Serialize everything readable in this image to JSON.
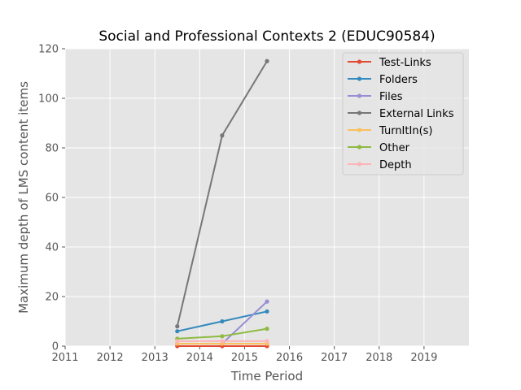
{
  "chart_data": {
    "type": "line",
    "title": "Social and Professional Contexts 2 (EDUC90584)",
    "xlabel": "Time Period",
    "ylabel": "Maximum depth of LMS content items",
    "xlim": [
      2011,
      2020
    ],
    "ylim": [
      0,
      120
    ],
    "xticks": [
      2011,
      2012,
      2013,
      2014,
      2015,
      2016,
      2017,
      2018,
      2019
    ],
    "yticks": [
      0,
      20,
      40,
      60,
      80,
      100,
      120
    ],
    "grid": true,
    "legend_position": "top-right",
    "x": [
      2013.5,
      2014.5,
      2015.5
    ],
    "series": [
      {
        "name": "Test-Links",
        "color": "#E24A33",
        "values": [
          0,
          0,
          0
        ]
      },
      {
        "name": "Folders",
        "color": "#348ABD",
        "values": [
          6,
          10,
          14
        ]
      },
      {
        "name": "Files",
        "color": "#988ED5",
        "values": [
          1,
          1,
          18
        ]
      },
      {
        "name": "External Links",
        "color": "#777777",
        "values": [
          8,
          85,
          115
        ]
      },
      {
        "name": "TurnItIn(s)",
        "color": "#FBC15E",
        "values": [
          1,
          1,
          1
        ]
      },
      {
        "name": "Other",
        "color": "#8EBA42",
        "values": [
          3,
          4,
          7
        ]
      },
      {
        "name": "Depth",
        "color": "#FFB5B8",
        "values": [
          2,
          2,
          2
        ]
      }
    ]
  }
}
